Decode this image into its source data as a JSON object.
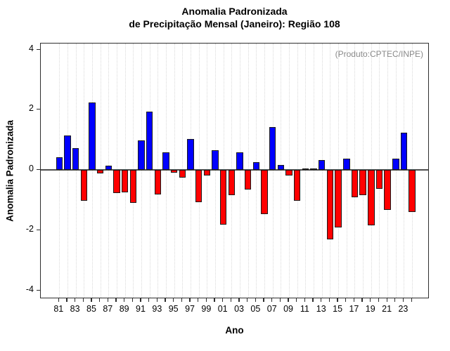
{
  "title": {
    "line1": "Anomalia Padronizada",
    "line2": "de Precipitação Mensal (Janeiro): Região 108"
  },
  "annotation": "(Produto:CPTEC/INPE)",
  "colors": {
    "positive_bar": "#0000ff",
    "negative_bar": "#ff0000",
    "bar_border": "#1a1a1a",
    "zero_line": "#4d4d4d",
    "gridline": "#d9d9d9",
    "axis": "#2e2e2e",
    "annotation_text": "#8a8a8a"
  },
  "chart_data": {
    "type": "bar",
    "title": "Anomalia Padronizada de Precipitação Mensal (Janeiro): Região 108",
    "xlabel": "Ano",
    "ylabel": "Anomalia Padronizada",
    "ylim": [
      -4.25,
      4.25
    ],
    "yticks": [
      4,
      2,
      0,
      -2,
      -4
    ],
    "grid": "vertical-dotted",
    "legend": "none",
    "annotation": "(Produto:CPTEC/INPE)",
    "xtick_labels": [
      "81",
      "83",
      "85",
      "87",
      "89",
      "91",
      "93",
      "95",
      "97",
      "99",
      "01",
      "03",
      "05",
      "07",
      "09",
      "11",
      "13",
      "15",
      "17",
      "19",
      "21",
      "23"
    ],
    "categories": [
      1981,
      1982,
      1983,
      1984,
      1985,
      1986,
      1987,
      1988,
      1989,
      1990,
      1991,
      1992,
      1993,
      1994,
      1995,
      1996,
      1997,
      1998,
      1999,
      2000,
      2001,
      2002,
      2003,
      2004,
      2005,
      2006,
      2007,
      2008,
      2009,
      2010,
      2011,
      2012,
      2013,
      2014,
      2015,
      2016,
      2017,
      2018,
      2019,
      2020,
      2021,
      2022,
      2023,
      2024
    ],
    "values": [
      0.42,
      1.14,
      0.73,
      -1.03,
      2.24,
      -0.12,
      0.14,
      -0.77,
      -0.75,
      -1.1,
      0.98,
      1.94,
      -0.82,
      0.58,
      -0.1,
      -0.25,
      1.02,
      -1.07,
      -0.19,
      0.66,
      -1.81,
      -0.83,
      0.58,
      -0.65,
      0.25,
      -1.46,
      1.42,
      0.16,
      -0.19,
      -1.02,
      0.05,
      0.05,
      0.33,
      -2.3,
      -1.91,
      0.37,
      -0.92,
      -0.85,
      -1.85,
      -0.62,
      -1.34,
      0.37,
      1.23,
      -1.39
    ]
  }
}
